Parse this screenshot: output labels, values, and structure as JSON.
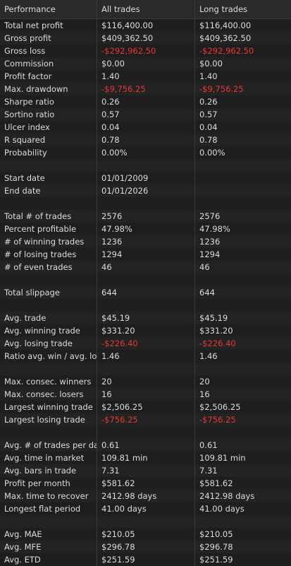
{
  "header": {
    "col0": "Performance",
    "col1": "All trades",
    "col2": "Long trades"
  },
  "neg_color": "#e53935",
  "rows": [
    {
      "label": "Total net profit",
      "all": "$116,400.00",
      "long": "$116,400.00",
      "neg": false
    },
    {
      "label": "Gross profit",
      "all": "$409,362.50",
      "long": "$409,362.50",
      "neg": false
    },
    {
      "label": "Gross loss",
      "all": "-$292,962.50",
      "long": "-$292,962.50",
      "neg": true
    },
    {
      "label": "Commission",
      "all": "$0.00",
      "long": "$0.00",
      "neg": false
    },
    {
      "label": "Profit factor",
      "all": "1.40",
      "long": "1.40",
      "neg": false
    },
    {
      "label": "Max. drawdown",
      "all": "-$9,756.25",
      "long": "-$9,756.25",
      "neg": true
    },
    {
      "label": "Sharpe ratio",
      "all": "0.26",
      "long": "0.26",
      "neg": false
    },
    {
      "label": "Sortino ratio",
      "all": "0.57",
      "long": "0.57",
      "neg": false
    },
    {
      "label": "Ulcer index",
      "all": "0.04",
      "long": "0.04",
      "neg": false
    },
    {
      "label": "R squared",
      "all": "0.78",
      "long": "0.78",
      "neg": false
    },
    {
      "label": "Probability",
      "all": "0.00%",
      "long": "0.00%",
      "neg": false
    },
    {
      "label": "",
      "all": "",
      "long": "",
      "neg": false
    },
    {
      "label": "Start date",
      "all": "01/01/2009",
      "long": "",
      "neg": false
    },
    {
      "label": "End date",
      "all": "01/01/2026",
      "long": "",
      "neg": false
    },
    {
      "label": "",
      "all": "",
      "long": "",
      "neg": false
    },
    {
      "label": "Total # of trades",
      "all": "2576",
      "long": "2576",
      "neg": false
    },
    {
      "label": "Percent profitable",
      "all": "47.98%",
      "long": "47.98%",
      "neg": false
    },
    {
      "label": "# of winning trades",
      "all": "1236",
      "long": "1236",
      "neg": false
    },
    {
      "label": "# of losing trades",
      "all": "1294",
      "long": "1294",
      "neg": false
    },
    {
      "label": "# of even trades",
      "all": "46",
      "long": "46",
      "neg": false
    },
    {
      "label": "",
      "all": "",
      "long": "",
      "neg": false
    },
    {
      "label": "Total slippage",
      "all": "644",
      "long": "644",
      "neg": false
    },
    {
      "label": "",
      "all": "",
      "long": "",
      "neg": false
    },
    {
      "label": "Avg. trade",
      "all": "$45.19",
      "long": "$45.19",
      "neg": false
    },
    {
      "label": "Avg. winning trade",
      "all": "$331.20",
      "long": "$331.20",
      "neg": false
    },
    {
      "label": "Avg. losing trade",
      "all": "-$226.40",
      "long": "-$226.40",
      "neg": true
    },
    {
      "label": "Ratio avg. win / avg. los",
      "all": "1.46",
      "long": "1.46",
      "neg": false
    },
    {
      "label": "",
      "all": "",
      "long": "",
      "neg": false
    },
    {
      "label": "Max. consec. winners",
      "all": "20",
      "long": "20",
      "neg": false
    },
    {
      "label": "Max. consec. losers",
      "all": "16",
      "long": "16",
      "neg": false
    },
    {
      "label": "Largest winning trade",
      "all": "$2,506.25",
      "long": "$2,506.25",
      "neg": false
    },
    {
      "label": "Largest losing trade",
      "all": "-$756.25",
      "long": "-$756.25",
      "neg": true
    },
    {
      "label": "",
      "all": "",
      "long": "",
      "neg": false
    },
    {
      "label": "Avg. # of trades per day",
      "all": "0.61",
      "long": "0.61",
      "neg": false
    },
    {
      "label": "Avg. time in market",
      "all": "109.81 min",
      "long": "109.81 min",
      "neg": false
    },
    {
      "label": "Avg. bars in trade",
      "all": "7.31",
      "long": "7.31",
      "neg": false
    },
    {
      "label": "Profit per month",
      "all": "$581.62",
      "long": "$581.62",
      "neg": false
    },
    {
      "label": "Max. time to recover",
      "all": "2412.98 days",
      "long": "2412.98 days",
      "neg": false
    },
    {
      "label": "Longest flat period",
      "all": "41.00 days",
      "long": "41.00 days",
      "neg": false
    },
    {
      "label": "",
      "all": "",
      "long": "",
      "neg": false
    },
    {
      "label": "Avg. MAE",
      "all": "$210.05",
      "long": "$210.05",
      "neg": false
    },
    {
      "label": "Avg. MFE",
      "all": "$296.78",
      "long": "$296.78",
      "neg": false
    },
    {
      "label": "Avg. ETD",
      "all": "$251.59",
      "long": "$251.59",
      "neg": false
    }
  ]
}
